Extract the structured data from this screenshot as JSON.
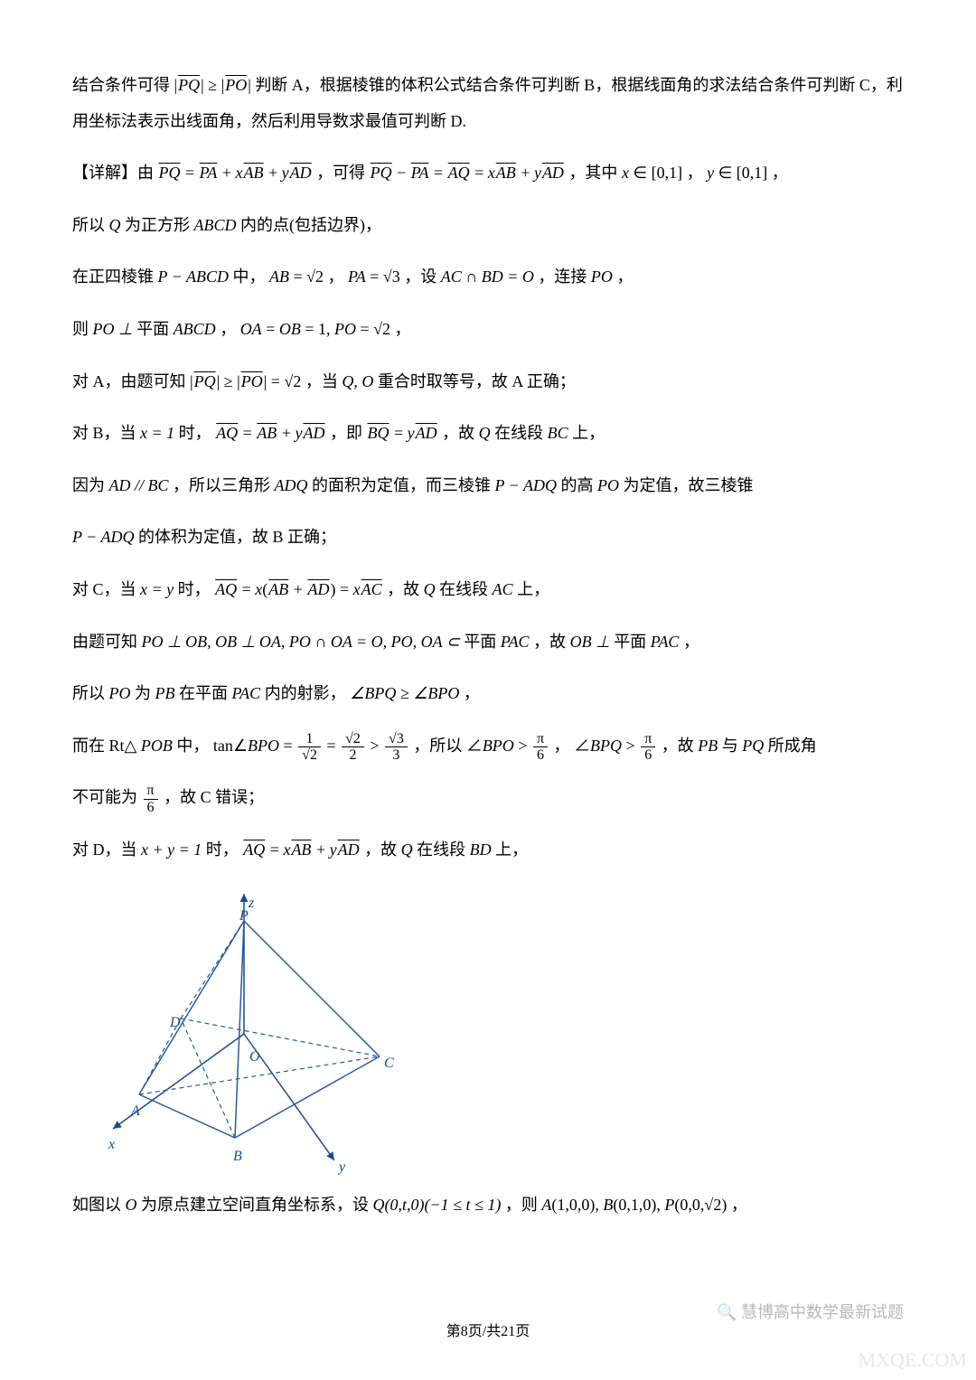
{
  "paragraphs": {
    "p1a": "结合条件可得 ",
    "p1b": " 判断 A，根据棱锥的体积公式结合条件可判断 B，根据线面角的求法结合条件可判断 C，利用坐标法表示出线面角，然后利用导数求最值可判断 D.",
    "p2a": "【详解】由 ",
    "p2b": "，可得 ",
    "p2c": "，其中 ",
    "p2d": "，",
    "p2e": "，",
    "p3a": "所以 ",
    "p3b": " 为正方形 ",
    "p3c": " 内的点(包括边界)，",
    "p4a": "在正四棱锥 ",
    "p4b": " 中，",
    "p4c": "，",
    "p4d": "，设 ",
    "p4e": "，连接 ",
    "p4f": "，",
    "p5a": "则 ",
    "p5b": " 平面 ",
    "p5c": "，",
    "p5d": "，",
    "p6a": "对 A，由题可知 ",
    "p6b": "，当 ",
    "p6c": " 重合时取等号，故 A 正确；",
    "p7a": "对 B，当 ",
    "p7b": " 时，",
    "p7c": "，即 ",
    "p7d": "，故 ",
    "p7e": " 在线段 ",
    "p7f": " 上，",
    "p8a": "因为 ",
    "p8b": "，所以三角形 ",
    "p8c": " 的面积为定值，而三棱锥 ",
    "p8d": " 的高 ",
    "p8e": " 为定值，故三棱锥",
    "p9a": "",
    "p9b": " 的体积为定值，故 B 正确；",
    "p10a": "对 C，当 ",
    "p10b": " 时，",
    "p10c": "，故 ",
    "p10d": " 在线段 ",
    "p10e": " 上，",
    "p11a": "由题可知 ",
    "p11b": " 平面 ",
    "p11c": "，故 ",
    "p11d": " 平面 ",
    "p11e": "，",
    "p12a": "所以 ",
    "p12b": " 为 ",
    "p12c": " 在平面 ",
    "p12d": " 内的射影，",
    "p12e": "，",
    "p13a": "而在 Rt△",
    "p13b": " 中，",
    "p13c": "，所以 ",
    "p13d": "，",
    "p13e": "，故 ",
    "p13f": " 与 ",
    "p13g": " 所成角",
    "p14a": "不可能为 ",
    "p14b": "，故 C 错误；",
    "p15a": "对 D，当 ",
    "p15b": " 时，",
    "p15c": "，故 ",
    "p15d": " 在线段 ",
    "p15e": " 上，",
    "p16a": "如图以 ",
    "p16b": " 为原点建立空间直角坐标系，设 ",
    "p16c": "，则 ",
    "p16d": "，"
  },
  "formulas": {
    "f1": "|PQ| ≥ |PO|",
    "f2": "PQ = PA + xAB + yAD",
    "f3": "PQ − PA = AQ = xAB + yAD",
    "f4a": "x ∈ [0,1]",
    "f4b": "y ∈ [0,1]",
    "f5": "Q",
    "f6": "ABCD",
    "f7": "P − ABCD",
    "f8": "AB = √2",
    "f9": "PA = √3",
    "f10": "AC ∩ BD = O",
    "f11": "PO",
    "f12": "PO ⊥",
    "f13": "ABCD",
    "f14": "OA = OB = 1, PO = √2",
    "f15": "|PQ| ≥ |PO| = √2",
    "f16": "Q, O",
    "f17": "x = 1",
    "f18": "AQ = AB + yAD",
    "f19": "BQ = yAD",
    "f20": "Q",
    "f21": "BC",
    "f22": "AD // BC",
    "f23": "ADQ",
    "f24": "P − ADQ",
    "f25": "PO",
    "f26": "P − ADQ",
    "f27": "x = y",
    "f28": "AQ = x(AB + AD) = xAC",
    "f29": "Q",
    "f30": "AC",
    "f31": "PO ⊥ OB, OB ⊥ OA, PO ∩ OA = O, PO, OA ⊂",
    "f32": "PAC",
    "f33": "OB ⊥",
    "f34": "PAC",
    "f35": "PO",
    "f36": "PB",
    "f37": "PAC",
    "f38": "∠BPQ ≥ ∠BPO",
    "f39": "POB",
    "f40": "tan∠BPO = ",
    "f41": "∠BPO > ",
    "f42": "∠BPQ > ",
    "f43": "PB",
    "f44": "PQ",
    "f45": "x + y = 1",
    "f46": "AQ = xAB + yAD",
    "f47": "Q",
    "f48": "BD",
    "f49": "O",
    "f50": "Q(0,t,0)(−1 ≤ t ≤ 1)",
    "f51": "A(1,0,0), B(0,1,0), P(0,0,√2)"
  },
  "figure": {
    "title": "pyramid-coordinate-system",
    "labels": {
      "z": "z",
      "x": "x",
      "y": "y",
      "P": "P",
      "A": "A",
      "B": "B",
      "C": "C",
      "D": "D",
      "O": "O"
    },
    "colors": {
      "axis": "#1a4a8a",
      "solid_edge": "#2a5a9a",
      "dashed_edge": "#2a5a9a"
    },
    "edges_solid": [
      [
        140,
        280,
        34,
        232
      ],
      [
        140,
        280,
        300,
        190
      ],
      [
        140,
        280,
        150,
        40
      ],
      [
        34,
        232,
        150,
        40
      ],
      [
        300,
        190,
        150,
        40
      ]
    ],
    "edges_dashed": [
      [
        34,
        232,
        80,
        148
      ],
      [
        80,
        148,
        300,
        190
      ],
      [
        80,
        148,
        150,
        40
      ],
      [
        140,
        280,
        80,
        148
      ],
      [
        34,
        232,
        300,
        190
      ],
      [
        150,
        165,
        150,
        40
      ]
    ],
    "axes": [
      [
        150,
        165,
        150,
        10
      ],
      [
        150,
        165,
        5,
        270
      ],
      [
        150,
        165,
        250,
        305
      ]
    ],
    "label_positions": {
      "z": [
        155,
        8
      ],
      "x": [
        0,
        275
      ],
      "y": [
        255,
        300
      ],
      "P": [
        145,
        22
      ],
      "A": [
        25,
        238
      ],
      "B": [
        138,
        288
      ],
      "C": [
        305,
        185
      ],
      "D": [
        68,
        140
      ],
      "O": [
        156,
        178
      ]
    }
  },
  "footer": "第8页/共21页",
  "watermark_text": "慧博高中数学最新试题",
  "watermark2": "MXQE.COM"
}
